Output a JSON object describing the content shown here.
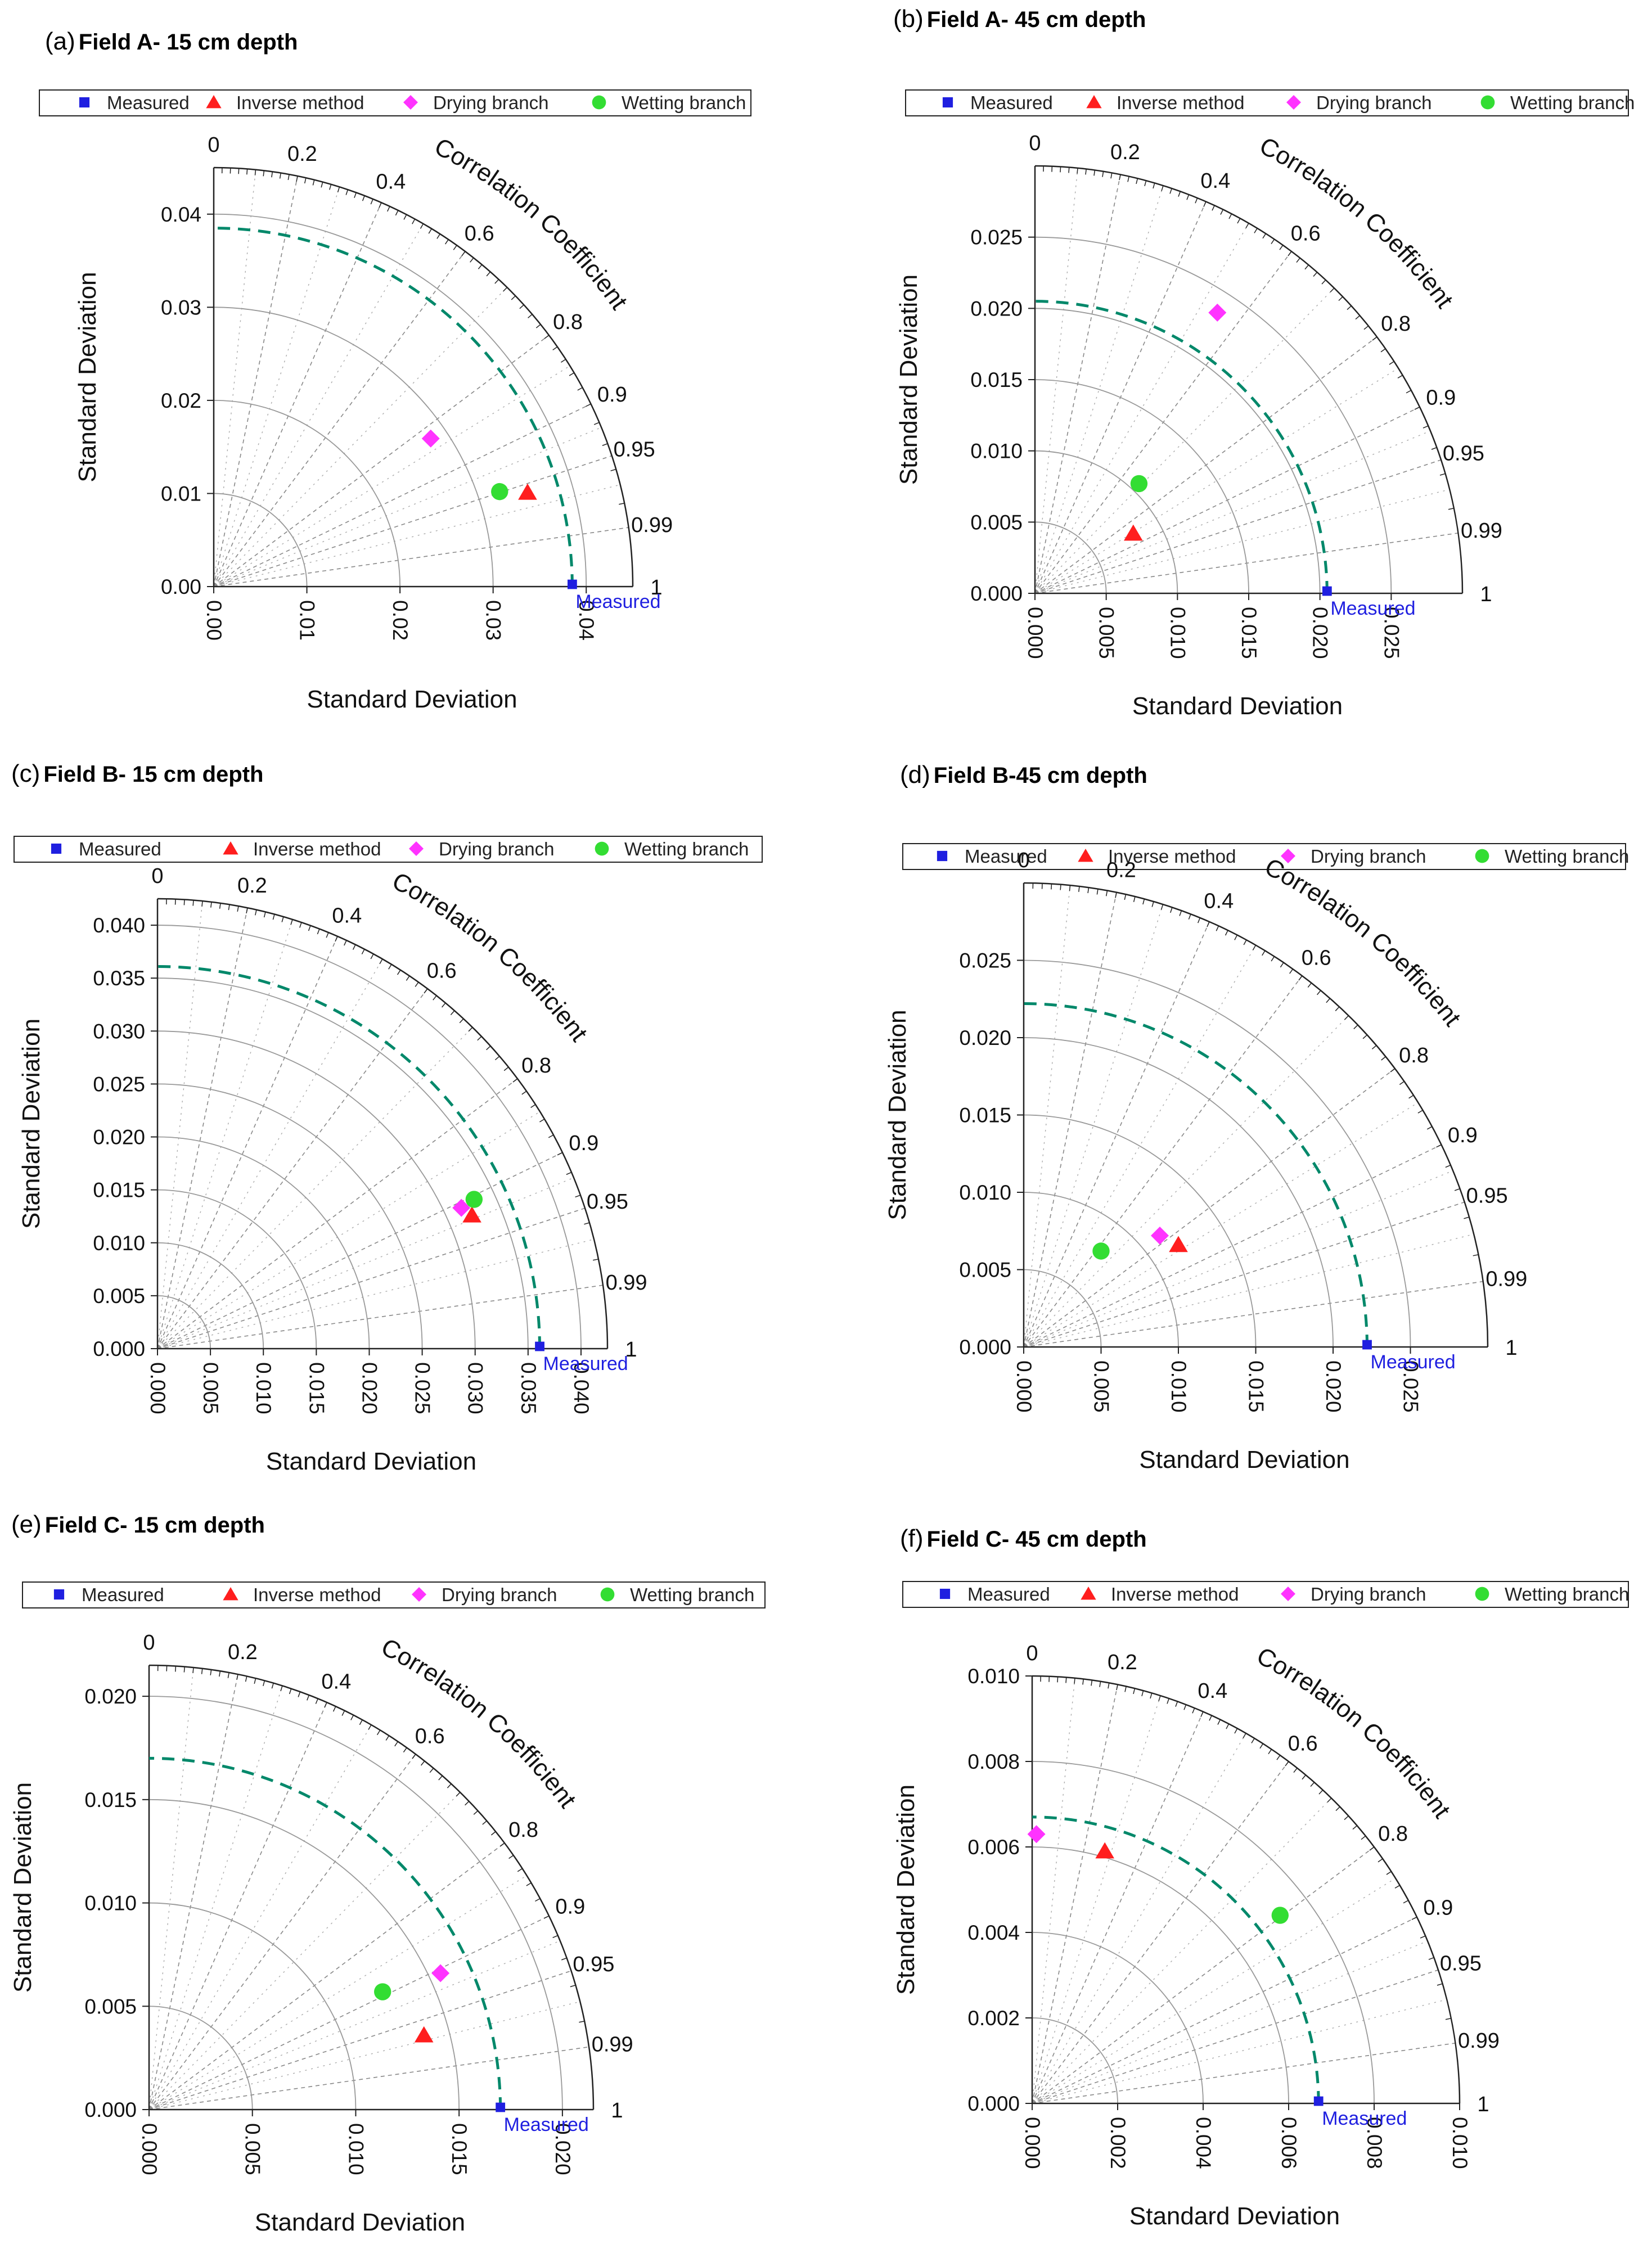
{
  "colors": {
    "measured": "#1f1fe0",
    "inverse": "#ff1e1e",
    "drying": "#ff33ff",
    "wetting": "#33dd33",
    "ref_arc": "#00886a",
    "grid": "#888888",
    "axis": "#222222"
  },
  "common": {
    "legend": [
      "Measured",
      "Inverse method",
      "Drying branch",
      "Wetting branch"
    ],
    "xlabel": "Standard Deviation",
    "ylabel": "Standard Deviation",
    "arc_label": "Correlation Coefficient",
    "corr_ticks": [
      "0",
      "0.2",
      "0.4",
      "0.6",
      "0.8",
      "0.9",
      "0.95",
      "0.99",
      "1"
    ],
    "corr_values": [
      0,
      0.2,
      0.4,
      0.6,
      0.8,
      0.9,
      0.95,
      0.99,
      1
    ],
    "ref_label": "Measured"
  },
  "chart_data": [
    {
      "type": "taylor",
      "panel": "(a)",
      "title": "Field A- 15 cm depth",
      "max_sd": 0.045,
      "y_ticks": [
        "0.00",
        "0.01",
        "0.02",
        "0.03",
        "0.04"
      ],
      "x_ticks": [
        "0.00",
        "0.01",
        "0.02",
        "0.03",
        "0.04"
      ],
      "tick_values": [
        0,
        0.01,
        0.02,
        0.03,
        0.04
      ],
      "ref_sd": 0.0385,
      "points": [
        {
          "series": "Inverse method",
          "x": 0.0337,
          "y": 0.0101
        },
        {
          "series": "Drying branch",
          "x": 0.0233,
          "y": 0.0159
        },
        {
          "series": "Wetting branch",
          "x": 0.0307,
          "y": 0.0102
        }
      ]
    },
    {
      "type": "taylor",
      "panel": "(b)",
      "title": "Field A- 45 cm depth",
      "max_sd": 0.03,
      "y_ticks": [
        "0.000",
        "0.005",
        "0.010",
        "0.015",
        "0.020",
        "0.025"
      ],
      "x_ticks": [
        "0.000",
        "0.005",
        "0.010",
        "0.015",
        "0.020",
        "0.025"
      ],
      "tick_values": [
        0,
        0.005,
        0.01,
        0.015,
        0.02,
        0.025
      ],
      "ref_sd": 0.0205,
      "points": [
        {
          "series": "Inverse method",
          "x": 0.0069,
          "y": 0.0042
        },
        {
          "series": "Drying branch",
          "x": 0.0128,
          "y": 0.0197
        },
        {
          "series": "Wetting branch",
          "x": 0.0073,
          "y": 0.0077
        }
      ]
    },
    {
      "type": "taylor",
      "panel": "(c)",
      "title": "Field B- 15 cm depth",
      "max_sd": 0.0425,
      "y_ticks": [
        "0.000",
        "0.005",
        "0.010",
        "0.015",
        "0.020",
        "0.025",
        "0.030",
        "0.035",
        "0.040"
      ],
      "x_ticks": [
        "0.000",
        "0.005",
        "0.010",
        "0.015",
        "0.020",
        "0.025",
        "0.030",
        "0.035",
        "0.040"
      ],
      "tick_values": [
        0,
        0.005,
        0.01,
        0.015,
        0.02,
        0.025,
        0.03,
        0.035,
        0.04
      ],
      "ref_sd": 0.0361,
      "points": [
        {
          "series": "Inverse method",
          "x": 0.0297,
          "y": 0.0126
        },
        {
          "series": "Drying branch",
          "x": 0.0287,
          "y": 0.0133
        },
        {
          "series": "Wetting branch",
          "x": 0.0299,
          "y": 0.0141
        }
      ]
    },
    {
      "type": "taylor",
      "panel": "(d)",
      "title": "Field B-45 cm depth",
      "max_sd": 0.03,
      "y_ticks": [
        "0.000",
        "0.005",
        "0.010",
        "0.015",
        "0.020",
        "0.025"
      ],
      "x_ticks": [
        "0.000",
        "0.005",
        "0.010",
        "0.015",
        "0.020",
        "0.025"
      ],
      "tick_values": [
        0,
        0.005,
        0.01,
        0.015,
        0.02,
        0.025
      ],
      "ref_sd": 0.0222,
      "points": [
        {
          "series": "Inverse method",
          "x": 0.01,
          "y": 0.0066
        },
        {
          "series": "Drying branch",
          "x": 0.0088,
          "y": 0.0072
        },
        {
          "series": "Wetting branch",
          "x": 0.005,
          "y": 0.0062
        }
      ]
    },
    {
      "type": "taylor",
      "panel": "(e)",
      "title": "Field C- 15 cm depth",
      "max_sd": 0.0215,
      "y_ticks": [
        "0.000",
        "0.005",
        "0.010",
        "0.015",
        "0.020"
      ],
      "x_ticks": [
        "0.000",
        "0.005",
        "0.010",
        "0.015",
        "0.020"
      ],
      "tick_values": [
        0,
        0.005,
        0.01,
        0.015,
        0.02
      ],
      "ref_sd": 0.017,
      "points": [
        {
          "series": "Inverse method",
          "x": 0.0133,
          "y": 0.0036
        },
        {
          "series": "Drying branch",
          "x": 0.0141,
          "y": 0.0066
        },
        {
          "series": "Wetting branch",
          "x": 0.0113,
          "y": 0.0057
        }
      ]
    },
    {
      "type": "taylor",
      "panel": "(f)",
      "title": "Field C- 45 cm depth",
      "max_sd": 0.01,
      "y_ticks": [
        "0.000",
        "0.002",
        "0.004",
        "0.006",
        "0.008",
        "0.010"
      ],
      "x_ticks": [
        "0.000",
        "0.002",
        "0.004",
        "0.006",
        "0.008",
        "0.010"
      ],
      "tick_values": [
        0,
        0.002,
        0.004,
        0.006,
        0.008,
        0.01
      ],
      "ref_sd": 0.0067,
      "points": [
        {
          "series": "Inverse method",
          "x": 0.0017,
          "y": 0.0059
        },
        {
          "series": "Drying branch",
          "x": 0.0001,
          "y": 0.0063
        },
        {
          "series": "Wetting branch",
          "x": 0.0058,
          "y": 0.0044
        }
      ]
    }
  ]
}
